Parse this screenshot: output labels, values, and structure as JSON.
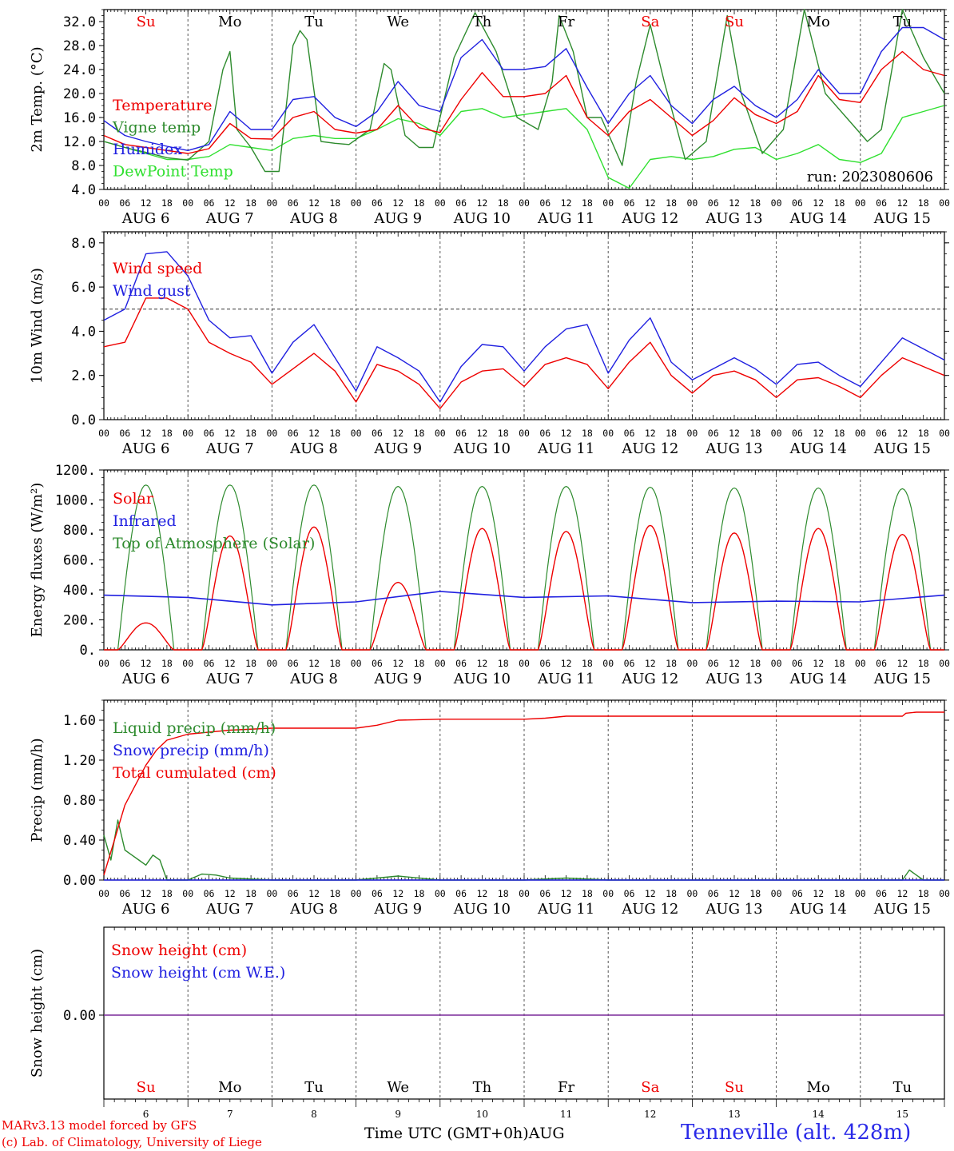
{
  "run_label": "run: 2023080606",
  "days": [
    "Su",
    "Mo",
    "Tu",
    "We",
    "Th",
    "Fr",
    "Sa",
    "Su",
    "Mo",
    "Tu"
  ],
  "day_colors": [
    "#e00",
    "#000",
    "#000",
    "#000",
    "#000",
    "#000",
    "#e00",
    "#e00",
    "#000",
    "#000"
  ],
  "date_labels": [
    "AUG  6",
    "AUG  7",
    "AUG  8",
    "AUG  9",
    "AUG 10",
    "AUG 11",
    "AUG 12",
    "AUG 13",
    "AUG 14",
    "AUG 15"
  ],
  "day_numbers": [
    "6",
    "7",
    "8",
    "9",
    "10",
    "11",
    "12",
    "13",
    "14",
    "15"
  ],
  "hour_ticks": [
    "00",
    "06",
    "12",
    "18"
  ],
  "hour_end": "00",
  "footer": {
    "credit1": "MARv3.13 model forced by GFS",
    "credit2": "(c) Lab. of Climatology, University of Liege",
    "x_title": "Time UTC (GMT+0h)AUG",
    "station": "Tenneville (alt. 428m)"
  },
  "chart_data": [
    {
      "type": "line",
      "ylabel": "2m Temp. (°C)",
      "ylim": [
        4,
        34
      ],
      "yticks": [
        "4.0",
        "8.0",
        "12.0",
        "16.0",
        "20.0",
        "24.0",
        "28.0",
        "32.0"
      ],
      "ytick_values": [
        4,
        8,
        12,
        16,
        20,
        24,
        28,
        32
      ],
      "x_unit": "hours since AUG 6 00 UTC",
      "annotation": "run: 2023080606",
      "series": [
        {
          "name": "Temperature",
          "color": "#e00",
          "x": [
            0,
            6,
            12,
            18,
            24,
            30,
            36,
            42,
            48,
            54,
            60,
            66,
            72,
            78,
            84,
            90,
            96,
            102,
            108,
            114,
            120,
            126,
            132,
            138,
            144,
            150,
            156,
            162,
            168,
            174,
            180,
            186,
            192,
            198,
            204,
            210,
            216,
            222,
            228,
            234,
            240
          ],
          "y": [
            13,
            11.5,
            11,
            10.5,
            10,
            10.8,
            15,
            12.5,
            12.4,
            16,
            17,
            14,
            13.4,
            14,
            18,
            14.3,
            13.5,
            19,
            23.5,
            19.5,
            19.5,
            20,
            23,
            16,
            13,
            17,
            19,
            16,
            13,
            15.5,
            19.3,
            16.5,
            15,
            17,
            23,
            19,
            18.5,
            24,
            27,
            24,
            23
          ]
        },
        {
          "name": "Vigne temp",
          "color": "#2e8b2e",
          "x": [
            0,
            6,
            12,
            18,
            24,
            30,
            34,
            36,
            38,
            42,
            46,
            50,
            54,
            56,
            58,
            62,
            66,
            70,
            76,
            80,
            82,
            86,
            90,
            94,
            100,
            106,
            112,
            118,
            124,
            128,
            130,
            134,
            138,
            142,
            148,
            152,
            156,
            160,
            166,
            172,
            178,
            182,
            188,
            194,
            200,
            206,
            212,
            218,
            222,
            228,
            234,
            240
          ],
          "y": [
            12,
            11,
            10.2,
            9.3,
            8.9,
            12,
            24,
            27,
            14,
            11,
            7,
            7,
            28,
            30.5,
            29,
            12,
            11.7,
            11.5,
            14,
            25,
            24,
            13,
            11,
            11,
            26,
            33.5,
            27,
            16,
            14,
            22,
            33,
            27,
            16,
            16,
            8,
            22,
            31.5,
            22,
            9,
            12,
            33,
            20,
            10,
            14,
            34,
            20,
            16,
            12,
            14,
            34,
            26,
            20
          ]
        },
        {
          "name": "Humidex",
          "color": "#2020e0",
          "x": [
            0,
            6,
            12,
            18,
            24,
            30,
            36,
            42,
            48,
            54,
            60,
            66,
            72,
            78,
            84,
            90,
            96,
            102,
            108,
            114,
            120,
            126,
            132,
            138,
            144,
            150,
            156,
            162,
            168,
            174,
            180,
            186,
            192,
            198,
            204,
            210,
            216,
            222,
            228,
            234,
            240
          ],
          "y": [
            15.5,
            13,
            12,
            11.2,
            10.5,
            11.5,
            17,
            14,
            14,
            19,
            19.5,
            16,
            14.5,
            17,
            22,
            18,
            17,
            26,
            29,
            24,
            24,
            24.5,
            27.5,
            21,
            15,
            20,
            23,
            18,
            15,
            19,
            21.2,
            18,
            16,
            19,
            24,
            20,
            20,
            27,
            31,
            31,
            29
          ]
        },
        {
          "name": "DewPoint Temp",
          "color": "#30e030",
          "x": [
            0,
            6,
            12,
            18,
            24,
            30,
            36,
            42,
            48,
            54,
            60,
            66,
            72,
            78,
            84,
            90,
            96,
            102,
            108,
            114,
            120,
            126,
            132,
            138,
            144,
            150,
            156,
            162,
            168,
            174,
            180,
            186,
            192,
            198,
            204,
            210,
            216,
            222,
            228,
            234,
            240
          ],
          "y": [
            12,
            11,
            10,
            9,
            9,
            9.5,
            11.5,
            11,
            10.5,
            12.5,
            13,
            12.5,
            12.5,
            14,
            15.8,
            15,
            13,
            17,
            17.5,
            16,
            16.5,
            17,
            17.5,
            14,
            6,
            4.2,
            9,
            9.5,
            9,
            9.5,
            10.7,
            11,
            9,
            10,
            11.5,
            9,
            8.5,
            10,
            16,
            17,
            18
          ]
        }
      ]
    },
    {
      "type": "line",
      "ylabel": "10m Wind (m/s)",
      "ylim": [
        0,
        8.5
      ],
      "yticks": [
        "0.0",
        "2.0",
        "4.0",
        "6.0",
        "8.0"
      ],
      "ytick_values": [
        0,
        2,
        4,
        6,
        8
      ],
      "reference_line": 5,
      "x_unit": "hours since AUG 6 00 UTC",
      "series": [
        {
          "name": "Wind speed",
          "color": "#e00",
          "x": [
            0,
            6,
            12,
            18,
            24,
            30,
            36,
            42,
            48,
            54,
            60,
            66,
            72,
            78,
            84,
            90,
            96,
            102,
            108,
            114,
            120,
            126,
            132,
            138,
            144,
            150,
            156,
            162,
            168,
            174,
            180,
            186,
            192,
            198,
            204,
            210,
            216,
            222,
            228,
            234,
            240
          ],
          "y": [
            3.3,
            3.5,
            5.5,
            5.5,
            5,
            3.5,
            3,
            2.6,
            1.6,
            2.3,
            3,
            2.2,
            0.8,
            2.5,
            2.2,
            1.6,
            0.5,
            1.7,
            2.2,
            2.3,
            1.5,
            2.5,
            2.8,
            2.5,
            1.4,
            2.6,
            3.5,
            2,
            1.2,
            2,
            2.2,
            1.8,
            1,
            1.8,
            1.9,
            1.5,
            1,
            2,
            2.8,
            2.4,
            2
          ]
        },
        {
          "name": "Wind gust",
          "color": "#2020e0",
          "x": [
            0,
            6,
            12,
            18,
            24,
            30,
            36,
            42,
            48,
            54,
            60,
            66,
            72,
            78,
            84,
            90,
            96,
            102,
            108,
            114,
            120,
            126,
            132,
            138,
            144,
            150,
            156,
            162,
            168,
            174,
            180,
            186,
            192,
            198,
            204,
            210,
            216,
            222,
            228,
            234,
            240
          ],
          "y": [
            4.5,
            5,
            7.5,
            7.6,
            6.5,
            4.5,
            3.7,
            3.8,
            2.1,
            3.5,
            4.3,
            2.8,
            1.3,
            3.3,
            2.8,
            2.2,
            0.8,
            2.4,
            3.4,
            3.3,
            2.2,
            3.3,
            4.1,
            4.3,
            2.1,
            3.6,
            4.6,
            2.6,
            1.8,
            2.3,
            2.8,
            2.3,
            1.6,
            2.5,
            2.6,
            2,
            1.5,
            2.6,
            3.7,
            3.2,
            2.7
          ]
        }
      ]
    },
    {
      "type": "line",
      "ylabel": "Energy fluxes (W/m²)",
      "ylim": [
        0,
        1200
      ],
      "yticks": [
        "0.",
        "200.",
        "400.",
        "600.",
        "800.",
        "1000.",
        "1200."
      ],
      "ytick_values": [
        0,
        200,
        400,
        600,
        800,
        1000,
        1200
      ],
      "x_unit": "hours since AUG 6 00 UTC",
      "solar_daily_peak": [
        180,
        760,
        820,
        450,
        810,
        790,
        830,
        780,
        810,
        770
      ],
      "toa_daily_peak": [
        1100,
        1100,
        1100,
        1090,
        1090,
        1090,
        1085,
        1080,
        1080,
        1075
      ],
      "series": [
        {
          "name": "Solar",
          "color": "#e00"
        },
        {
          "name": "Infrared",
          "color": "#2020e0",
          "x": [
            0,
            24,
            48,
            72,
            96,
            120,
            144,
            168,
            192,
            216,
            240
          ],
          "y": [
            365,
            350,
            300,
            320,
            390,
            350,
            360,
            315,
            325,
            320,
            365
          ]
        },
        {
          "name": "Top of Atmosphere (Solar)",
          "color": "#2e8b2e"
        }
      ]
    },
    {
      "type": "line",
      "ylabel": "Precip (mm/h)",
      "ylim": [
        0,
        1.8
      ],
      "yticks": [
        "0.00",
        "0.40",
        "0.80",
        "1.20",
        "1.60"
      ],
      "ytick_values": [
        0,
        0.4,
        0.8,
        1.2,
        1.6
      ],
      "x_unit": "hours since AUG 6 00 UTC",
      "series": [
        {
          "name": "Liquid precip (mm/h)",
          "color": "#2e8b2e",
          "x": [
            0,
            2,
            4,
            6,
            8,
            10,
            12,
            14,
            16,
            18,
            20,
            24,
            28,
            32,
            36,
            48,
            72,
            84,
            96,
            120,
            132,
            144,
            216,
            228,
            230,
            232,
            234,
            240
          ],
          "y": [
            0.45,
            0.2,
            0.6,
            0.3,
            0.25,
            0.2,
            0.15,
            0.25,
            0.2,
            0,
            0,
            0,
            0.06,
            0.05,
            0.02,
            0,
            0,
            0.04,
            0,
            0,
            0.02,
            0,
            0,
            0,
            0.1,
            0.05,
            0,
            0
          ]
        },
        {
          "name": "Snow precip (mm/h)",
          "color": "#2020e0",
          "x": [
            0,
            240
          ],
          "y": [
            0,
            0
          ]
        },
        {
          "name": "Total cumulated (cm)",
          "color": "#e00",
          "x": [
            0,
            3,
            6,
            9,
            12,
            15,
            18,
            24,
            36,
            48,
            72,
            78,
            84,
            96,
            120,
            126,
            132,
            144,
            168,
            192,
            216,
            228,
            229,
            232,
            240
          ],
          "y": [
            0.05,
            0.4,
            0.75,
            0.95,
            1.15,
            1.3,
            1.4,
            1.46,
            1.5,
            1.52,
            1.52,
            1.55,
            1.6,
            1.61,
            1.61,
            1.62,
            1.64,
            1.64,
            1.64,
            1.64,
            1.64,
            1.64,
            1.67,
            1.68,
            1.68
          ]
        }
      ]
    },
    {
      "type": "line",
      "ylabel": "Snow height (cm)",
      "yticks": [
        "0.00"
      ],
      "ytick_values": [
        0
      ],
      "x_unit": "hours since AUG 6 00 UTC",
      "series": [
        {
          "name": "Snow height (cm)",
          "color": "#e00",
          "x": [
            0,
            240
          ],
          "y": [
            0,
            0
          ]
        },
        {
          "name": "Snow height (cm W.E.)",
          "color": "#2020e0",
          "x": [
            0,
            240
          ],
          "y": [
            0,
            0
          ]
        }
      ]
    }
  ]
}
